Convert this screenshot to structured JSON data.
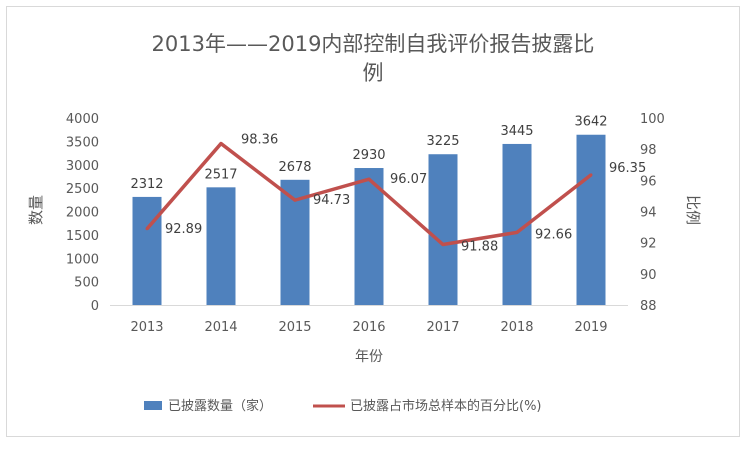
{
  "chart_data": {
    "type": "bar",
    "title": "2013年——2019内部控制自我评价报告披露比例",
    "title_lines": [
      "2013年——2019内部控制自我评价报告披露比",
      "例"
    ],
    "xlabel": "年份",
    "ylabel": "数量",
    "y2label": "比例",
    "categories": [
      "2013",
      "2014",
      "2015",
      "2016",
      "2017",
      "2018",
      "2019"
    ],
    "ylim": [
      0,
      4000
    ],
    "yticks": [
      "0",
      "500",
      "1000",
      "1500",
      "2000",
      "2500",
      "3000",
      "3500",
      "4000"
    ],
    "y2lim": [
      88,
      100
    ],
    "y2ticks": [
      "88",
      "90",
      "92",
      "94",
      "96",
      "98",
      "100"
    ],
    "grid": false,
    "legend_position": "bottom",
    "series": [
      {
        "name": "已披露数量（家）",
        "type": "bar",
        "axis": "left",
        "color": "#4f81bd",
        "values": [
          2312,
          2517,
          2678,
          2930,
          3225,
          3445,
          3642
        ],
        "labels": [
          "2312",
          "2517",
          "2678",
          "2930",
          "3225",
          "3445",
          "3642"
        ]
      },
      {
        "name": "已披露占市场总样本的百分比(%)",
        "type": "line",
        "axis": "right",
        "color": "#c0504d",
        "values": [
          92.89,
          98.36,
          94.73,
          96.07,
          91.88,
          92.66,
          96.35
        ],
        "labels": [
          "92.89",
          "98.36",
          "94.73",
          "96.07",
          "91.88",
          "92.66",
          "96.35"
        ]
      }
    ]
  }
}
